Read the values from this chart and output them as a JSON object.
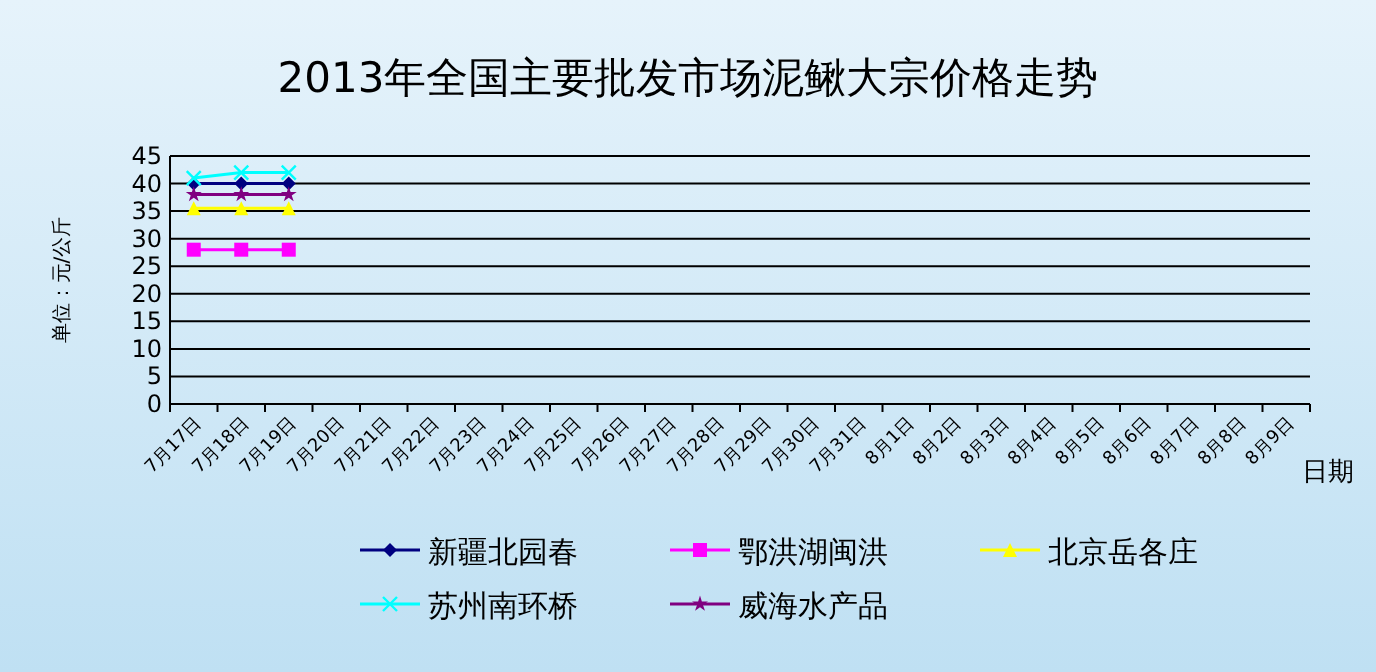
{
  "chart_data": {
    "type": "line",
    "title": "2013年全国主要批发市场泥鳅大宗价格走势",
    "xlabel": "日期",
    "ylabel": "单位：元/公斤",
    "categories": [
      "7月17日",
      "7月18日",
      "7月19日",
      "7月20日",
      "7月21日",
      "7月22日",
      "7月23日",
      "7月24日",
      "7月25日",
      "7月26日",
      "7月27日",
      "7月28日",
      "7月29日",
      "7月30日",
      "7月31日",
      "8月1日",
      "8月2日",
      "8月3日",
      "8月4日",
      "8月5日",
      "8月6日",
      "8月7日",
      "8月8日",
      "8月9日"
    ],
    "series": [
      {
        "name": "新疆北园春",
        "color": "#000080",
        "marker": "diamond",
        "values": [
          40,
          40,
          40,
          null,
          null,
          null,
          null,
          null,
          null,
          null,
          null,
          null,
          null,
          null,
          null,
          null,
          null,
          null,
          null,
          null,
          null,
          null,
          null,
          null
        ]
      },
      {
        "name": "鄂洪湖闽洪",
        "color": "#ff00ff",
        "marker": "square",
        "values": [
          28,
          28,
          28,
          null,
          null,
          null,
          null,
          null,
          null,
          null,
          null,
          null,
          null,
          null,
          null,
          null,
          null,
          null,
          null,
          null,
          null,
          null,
          null,
          null
        ]
      },
      {
        "name": "北京岳各庄",
        "color": "#ffff00",
        "marker": "triangle",
        "values": [
          35.5,
          35.5,
          35.5,
          null,
          null,
          null,
          null,
          null,
          null,
          null,
          null,
          null,
          null,
          null,
          null,
          null,
          null,
          null,
          null,
          null,
          null,
          null,
          null,
          null
        ]
      },
      {
        "name": "苏州南环桥",
        "color": "#00ffff",
        "marker": "cross",
        "values": [
          41,
          42,
          42,
          null,
          null,
          null,
          null,
          null,
          null,
          null,
          null,
          null,
          null,
          null,
          null,
          null,
          null,
          null,
          null,
          null,
          null,
          null,
          null,
          null
        ]
      },
      {
        "name": "威海水产品",
        "color": "#800080",
        "marker": "star",
        "values": [
          38,
          38,
          38,
          null,
          null,
          null,
          null,
          null,
          null,
          null,
          null,
          null,
          null,
          null,
          null,
          null,
          null,
          null,
          null,
          null,
          null,
          null,
          null,
          null
        ]
      }
    ],
    "ylim": [
      0,
      45
    ],
    "yticks": [
      0,
      5,
      10,
      15,
      20,
      25,
      30,
      35,
      40,
      45
    ],
    "grid": "y",
    "legend": "bottom"
  }
}
